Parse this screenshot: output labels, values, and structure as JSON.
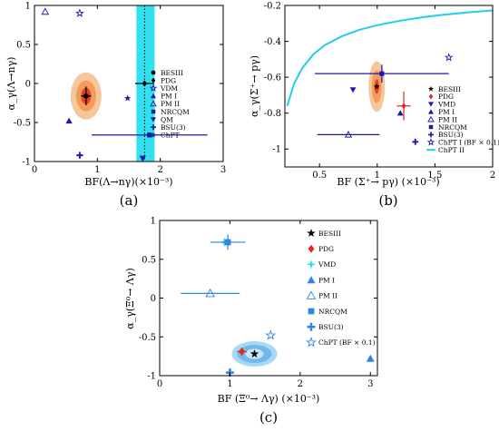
{
  "chart_data": [
    {
      "type": "scatter",
      "panel_label": "(a)",
      "xlabel": "BF(Λ→nγ)(×10⁻³)",
      "ylabel": "α_γ(Λ→nγ)",
      "xlim": [
        0,
        3
      ],
      "ylim": [
        -1,
        1
      ],
      "xticks": [
        "0",
        "1",
        "2",
        "3"
      ],
      "yticks": [
        "-1",
        "-0.5",
        "0",
        "0.5",
        "1"
      ],
      "band": {
        "x_from": 1.62,
        "x_to": 1.91,
        "color": "#00d8e8"
      },
      "dotted_line_x": 1.75,
      "ellipse_center": {
        "x": 0.82,
        "y": -0.16
      },
      "legend_position": "top-right",
      "series": [
        {
          "name": "BESIII",
          "marker": "circle",
          "color": "#000000",
          "x": 0.82,
          "y": -0.16,
          "xerr": 0.08,
          "yerr": 0.12
        },
        {
          "name": "PDG",
          "marker": "diamond",
          "color": "#000000",
          "x": 1.75,
          "y": 0.0,
          "xerr": 0.15,
          "yerr": 0
        },
        {
          "name": "VDM",
          "marker": "star-open",
          "color": "#1a1aa6",
          "x": 0.72,
          "y": 0.9
        },
        {
          "name": "PM I",
          "marker": "triangle",
          "color": "#1a1aa6",
          "x": 0.55,
          "y": -0.48
        },
        {
          "name": "PM II",
          "marker": "triangle-open",
          "color": "#1a1aa6",
          "x": 0.17,
          "y": 0.92
        },
        {
          "name": "NRCQM",
          "marker": "square",
          "color": "#1a1aa6",
          "x": 1.83,
          "y": -0.66,
          "xerr": 0.92,
          "yerr": 0
        },
        {
          "name": "QM",
          "marker": "triangle-down",
          "color": "#1a1aa6",
          "x": 1.72,
          "y": -0.96
        },
        {
          "name": "BSU(3)",
          "marker": "cross",
          "color": "#1a1aa6",
          "x": 0.72,
          "y": -0.92
        },
        {
          "name": "ChPT",
          "marker": "star",
          "color": "#1a1aa6",
          "x": 1.48,
          "y": -0.19
        }
      ]
    },
    {
      "type": "scatter",
      "panel_label": "(b)",
      "xlabel": "BF (Σ⁺→ pγ) (×10⁻³)",
      "ylabel": "α_γ(Σ⁺→ pγ)",
      "xlim": [
        0.2,
        2
      ],
      "ylim": [
        -1.1,
        -0.2
      ],
      "xticks": [
        "0.5",
        "1",
        "1.5",
        "2"
      ],
      "yticks": [
        "-1",
        "-0.8",
        "-0.6",
        "-0.4",
        "-0.2"
      ],
      "ellipse_center": {
        "x": 0.996,
        "y": -0.652
      },
      "legend_position": "bottom-right",
      "curve": {
        "name": "ChPT II",
        "color": "#22ccee",
        "x": [
          0.22,
          0.28,
          0.35,
          0.45,
          0.55,
          0.7,
          0.85,
          1.0,
          1.2,
          1.4,
          1.6,
          1.8,
          2.0
        ],
        "y": [
          -0.76,
          -0.635,
          -0.55,
          -0.47,
          -0.42,
          -0.37,
          -0.335,
          -0.31,
          -0.285,
          -0.265,
          -0.25,
          -0.238,
          -0.228
        ]
      },
      "series": [
        {
          "name": "BESIII",
          "marker": "star",
          "color": "#000000",
          "x": 0.996,
          "y": -0.652
        },
        {
          "name": "PDG",
          "marker": "diamond",
          "color": "#e3261e",
          "x": 1.23,
          "y": -0.76,
          "xerr": 0.06,
          "yerr": 0.08
        },
        {
          "name": "VMD",
          "marker": "triangle-down",
          "color": "#1a1aa6",
          "x": 0.79,
          "y": -0.67
        },
        {
          "name": "PM I",
          "marker": "triangle",
          "color": "#1a1aa6",
          "x": 1.2,
          "y": -0.8
        },
        {
          "name": "PM II",
          "marker": "triangle-open",
          "color": "#1a1aa6",
          "x": 0.75,
          "y": -0.92,
          "xerr": 0.27,
          "yerr": 0
        },
        {
          "name": "NRCQM",
          "marker": "square",
          "color": "#1a1aa6",
          "x": 1.04,
          "y": -0.58,
          "xerr": 0.58,
          "yerr": 0.05
        },
        {
          "name": "BSU(3)",
          "marker": "cross",
          "color": "#1a1aa6",
          "x": 1.33,
          "y": -0.96
        },
        {
          "name": "ChPT I (BF × 0.1)",
          "marker": "star-open",
          "color": "#1a1aa6",
          "x": 1.62,
          "y": -0.49
        },
        {
          "name": "ChPT II",
          "marker": "line",
          "color": "#22ccee"
        }
      ]
    },
    {
      "type": "scatter",
      "panel_label": "(c)",
      "xlabel": "BF (Ξ⁰→ Λγ) (×10⁻³)",
      "ylabel": "α_γ(Ξ⁰→ Λγ)",
      "xlim": [
        0,
        3.1
      ],
      "ylim": [
        -1,
        1
      ],
      "xticks": [
        "0",
        "1",
        "2",
        "3"
      ],
      "yticks": [
        "-1",
        "-0.5",
        "0",
        "0.5",
        "1"
      ],
      "ellipse_center": {
        "x": 1.35,
        "y": -0.72
      },
      "legend_position": "top-right",
      "series": [
        {
          "name": "BESIII",
          "marker": "star",
          "color": "#000000",
          "x": 1.35,
          "y": -0.72
        },
        {
          "name": "PDG",
          "marker": "diamond",
          "color": "#e3261e",
          "x": 1.17,
          "y": -0.69,
          "xerr": 0.07,
          "yerr": 0.05
        },
        {
          "name": "VMD",
          "marker": "star-cyan",
          "color": "#22ddee",
          "x": 0.92,
          "y": 0.72
        },
        {
          "name": "PM I",
          "marker": "triangle",
          "color": "#2f86e0",
          "x": 3.0,
          "y": -0.78
        },
        {
          "name": "PM II",
          "marker": "triangle-open",
          "color": "#2f86e0",
          "x": 0.72,
          "y": 0.06,
          "xerr": 0.42,
          "yerr": 0
        },
        {
          "name": "NRCQM",
          "marker": "square",
          "color": "#2f86e0",
          "x": 0.97,
          "y": 0.72,
          "xerr": 0.25,
          "yerr": 0.1
        },
        {
          "name": "BSU(3)",
          "marker": "cross",
          "color": "#2f86e0",
          "x": 1.0,
          "y": -0.96
        },
        {
          "name": "ChPT (BF × 0.1)",
          "marker": "star-open",
          "color": "#2f86e0",
          "x": 1.58,
          "y": -0.48
        }
      ]
    }
  ]
}
